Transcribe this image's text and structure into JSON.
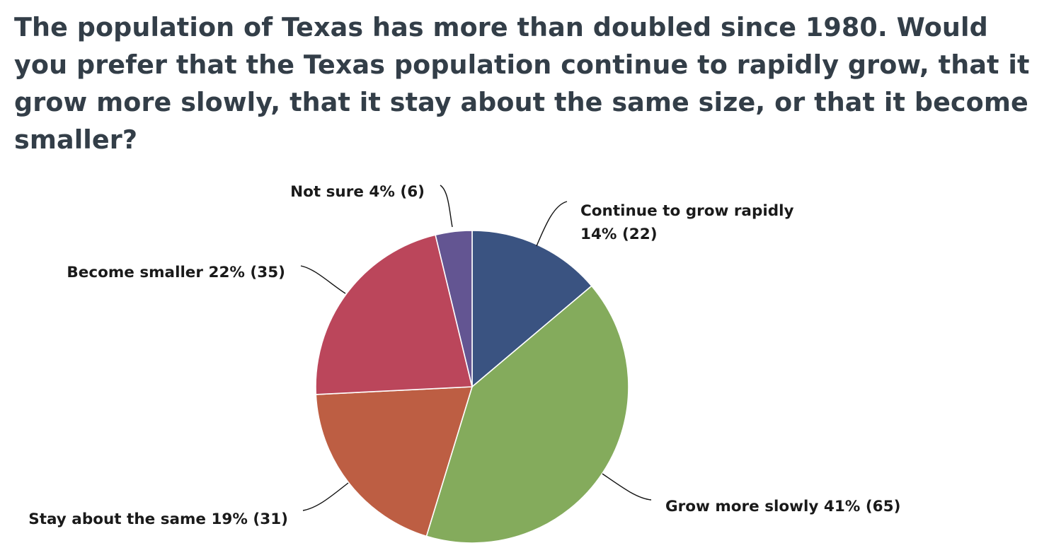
{
  "question": {
    "title": "The population of Texas has more than doubled since 1980. Would you prefer that the Texas population continue to rapidly grow, that it grow more slowly, that it stay about the same size, or that it become smaller?"
  },
  "chart_data": {
    "type": "pie",
    "title": "The population of Texas has more than doubled since 1980. Would you prefer that the Texas population continue to rapidly grow, that it grow more slowly, that it stay about the same size, or that it become smaller?",
    "start_angle": "12 o'clock",
    "direction": "clockwise",
    "slices": [
      {
        "id": "continue-to-grow-rapidly",
        "label_lines": [
          "Continue to grow rapidly",
          "14% (22)"
        ],
        "percent": 14,
        "count": 22,
        "color": "#3a5381"
      },
      {
        "id": "grow-more-slowly",
        "label_lines": [
          "Grow more slowly 41% (65)"
        ],
        "percent": 41,
        "count": 65,
        "color": "#84ab5c"
      },
      {
        "id": "stay-about-the-same",
        "label_lines": [
          "Stay about the same 19% (31)"
        ],
        "percent": 19,
        "count": 31,
        "color": "#bd5e43"
      },
      {
        "id": "become-smaller",
        "label_lines": [
          "Become smaller 22% (35)"
        ],
        "percent": 22,
        "count": 35,
        "color": "#bb465b"
      },
      {
        "id": "not-sure",
        "label_lines": [
          "Not sure 4% (6)"
        ],
        "percent": 4,
        "count": 6,
        "color": "#635592"
      }
    ]
  }
}
